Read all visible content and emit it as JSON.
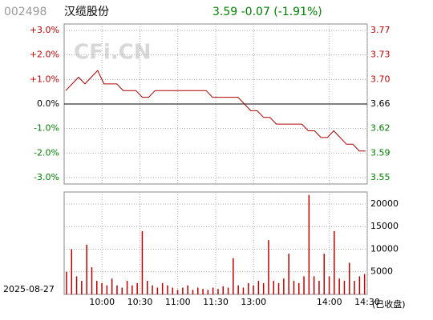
{
  "header": {
    "code": "002498",
    "name": "汉缆股份",
    "quote": "3.59 -0.07 (-1.91%)"
  },
  "watermark": "CFi.CN",
  "date": "2025-08-27",
  "status": "(已收盘)",
  "time_labels": [
    "10:00",
    "10:30",
    "11:00",
    "11:30",
    "13:00",
    "14:00",
    "14:30"
  ],
  "chart_data": [
    {
      "type": "line",
      "ylim": [
        -3.26,
        3.26
      ],
      "yticks": [
        {
          "value": 3,
          "label": "+3.0%"
        },
        {
          "value": 2,
          "label": "+2.0%"
        },
        {
          "value": 1,
          "label": "+1.0%"
        },
        {
          "value": 0,
          "label": "0.0%"
        },
        {
          "value": -1,
          "label": "-1.0%"
        },
        {
          "value": -2,
          "label": "-2.0%"
        },
        {
          "value": -3,
          "label": "-3.0%"
        }
      ],
      "y2lim": [
        3.5407,
        3.7793
      ],
      "y2ticks": [
        {
          "value": 3.7698,
          "label": "3.77"
        },
        {
          "value": 3.7332,
          "label": "3.73"
        },
        {
          "value": 3.6966,
          "label": "3.70"
        },
        {
          "value": 3.66,
          "label": "3.66"
        },
        {
          "value": 3.6234,
          "label": "3.62"
        },
        {
          "value": 3.5868,
          "label": "3.59"
        },
        {
          "value": 3.5502,
          "label": "3.55"
        }
      ],
      "grid": true,
      "series": [
        {
          "color": "#b00000",
          "axis": "y2",
          "values": [
            3.68,
            3.69,
            3.7,
            3.69,
            3.7,
            3.71,
            3.69,
            3.69,
            3.69,
            3.68,
            3.68,
            3.68,
            3.67,
            3.67,
            3.68,
            3.68,
            3.68,
            3.68,
            3.68,
            3.68,
            3.68,
            3.68,
            3.68,
            3.67,
            3.67,
            3.67,
            3.67,
            3.67,
            3.66,
            3.65,
            3.65,
            3.64,
            3.64,
            3.63,
            3.63,
            3.63,
            3.63,
            3.63,
            3.62,
            3.62,
            3.61,
            3.61,
            3.62,
            3.61,
            3.6,
            3.6,
            3.59,
            3.59
          ]
        }
      ]
    },
    {
      "type": "bar",
      "ylim": [
        0,
        22650
      ],
      "yticks": [
        5000,
        10000,
        15000,
        20000
      ],
      "grid": true,
      "color": "#c00000",
      "values": [
        5000,
        10000,
        4000,
        3000,
        11000,
        6000,
        3000,
        2500,
        2000,
        3500,
        2000,
        1500,
        3000,
        2000,
        2500,
        14000,
        3000,
        2000,
        1500,
        2500,
        2000,
        1500,
        1000,
        1500,
        2000,
        1000,
        1500,
        1200,
        1000,
        1500,
        1200,
        1800,
        1500,
        8000,
        2000,
        1500,
        2500,
        2000,
        3000,
        2500,
        12000,
        3000,
        2500,
        3500,
        9000,
        3000,
        2500,
        4000,
        22000,
        4000,
        3000,
        9000,
        4000,
        14000,
        3500,
        3000,
        7000,
        3000,
        4000,
        4500
      ]
    }
  ]
}
